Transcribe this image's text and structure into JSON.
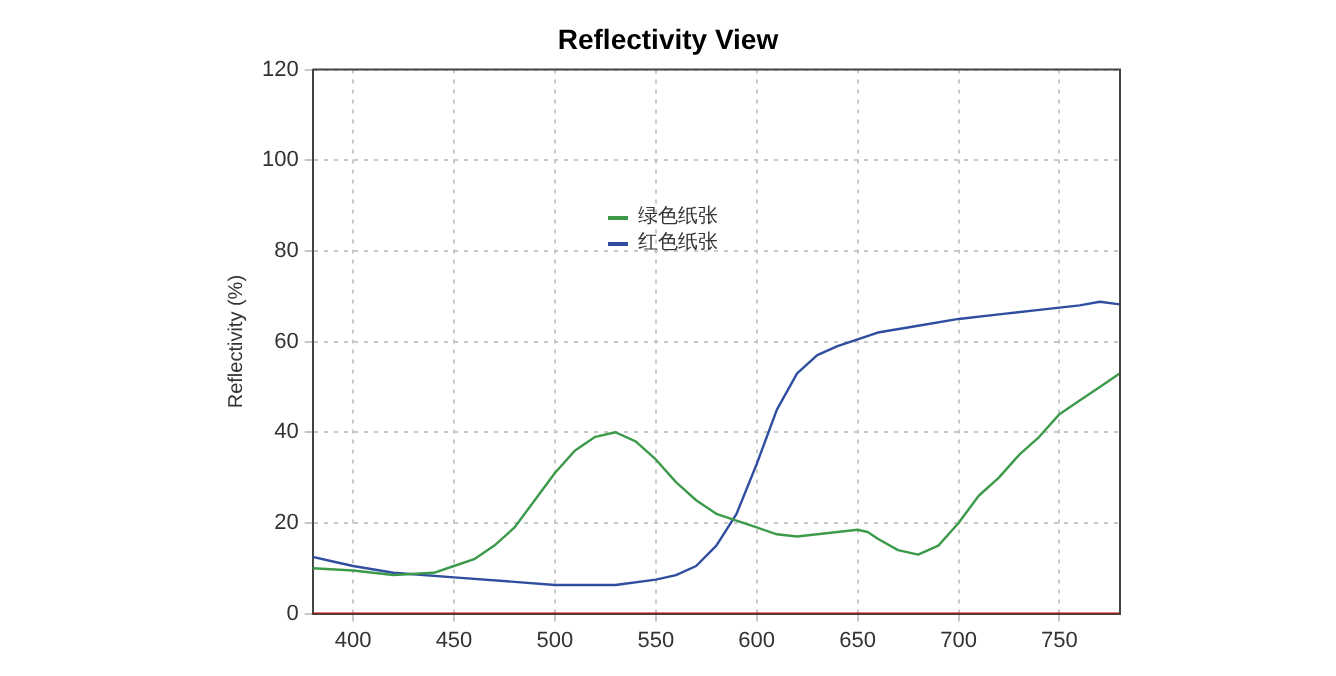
{
  "chart_data": {
    "type": "line",
    "title": "Reflectivity View",
    "ylabel": "Reflectivity (%)",
    "xlim": [
      380,
      780
    ],
    "xticks": [
      400,
      450,
      500,
      550,
      600,
      650,
      700,
      750
    ],
    "ylim": [
      0,
      120
    ],
    "yticks": [
      0,
      20,
      40,
      60,
      80,
      100,
      120
    ],
    "grid": true,
    "legend": "top",
    "marker": "none",
    "line_style": "solid",
    "series": [
      {
        "name": "绿色纸张",
        "color": "#3c9a4a",
        "x": [
          380,
          400,
          420,
          440,
          450,
          460,
          470,
          480,
          490,
          500,
          510,
          520,
          530,
          540,
          550,
          560,
          570,
          580,
          590,
          600,
          610,
          620,
          630,
          640,
          650,
          655,
          660,
          670,
          680,
          690,
          700,
          710,
          720,
          730,
          740,
          750,
          760,
          770,
          780
        ],
        "values": [
          10,
          9.5,
          8.5,
          9,
          10.5,
          12,
          15,
          19,
          25,
          31,
          36,
          39,
          40,
          38,
          34,
          29,
          25,
          22,
          20.5,
          19,
          17.5,
          17,
          17.5,
          18,
          18.5,
          18,
          16.5,
          14,
          13,
          15,
          20,
          26,
          30,
          35,
          39,
          44,
          47,
          50,
          53
        ]
      },
      {
        "name": "红色纸张",
        "color": "#2f4ea0",
        "x": [
          380,
          390,
          400,
          420,
          450,
          480,
          500,
          530,
          550,
          560,
          570,
          580,
          590,
          600,
          610,
          620,
          630,
          640,
          650,
          660,
          680,
          700,
          720,
          740,
          760,
          770,
          780
        ],
        "values": [
          12.5,
          11.5,
          10.5,
          9,
          8,
          7,
          6.3,
          6.3,
          7.5,
          8.5,
          10.5,
          15,
          22,
          33,
          45,
          53,
          57,
          59,
          60.5,
          62,
          63.5,
          65,
          66,
          67,
          68,
          68.8,
          68.2
        ]
      },
      {
        "color": "#c00000",
        "x": [
          380,
          780
        ],
        "values": [
          0,
          0
        ]
      }
    ]
  }
}
